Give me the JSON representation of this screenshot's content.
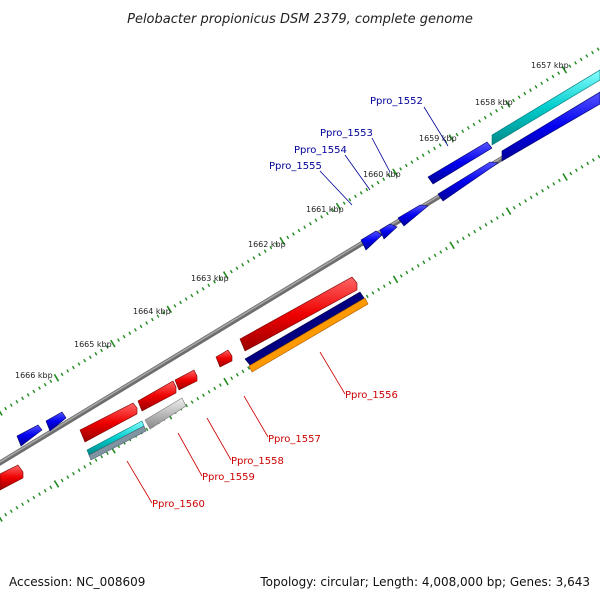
{
  "title": "Pelobacter propionicus DSM 2379, complete genome",
  "footer": {
    "accession": "Accession: NC_008609",
    "topology": "Topology: circular; Length: 4,008,000 bp; Genes: 3,643"
  },
  "ruler_labels": [
    "1657 kbp",
    "1658 kbp",
    "1659 kbp",
    "1660 kbp",
    "1661 kbp",
    "1662 kbp",
    "1663 kbp",
    "1664 kbp",
    "1665 kbp",
    "1666 kbp"
  ],
  "genes_top": [
    "Ppro_1552",
    "Ppro_1553",
    "Ppro_1554",
    "Ppro_1555"
  ],
  "genes_bottom": [
    "Ppro_1556",
    "Ppro_1557",
    "Ppro_1558",
    "Ppro_1559",
    "Ppro_1560"
  ],
  "colors": {
    "forward": "#0000ee",
    "reverse": "#ee0000",
    "cyan": "#00cccc",
    "navy": "#000080",
    "orange": "#ff9900",
    "grey": "#bbbbbb",
    "backbone": "#808080",
    "tick": "#228b22",
    "label_top": "#000099",
    "label_bottom": "#cc0000"
  }
}
